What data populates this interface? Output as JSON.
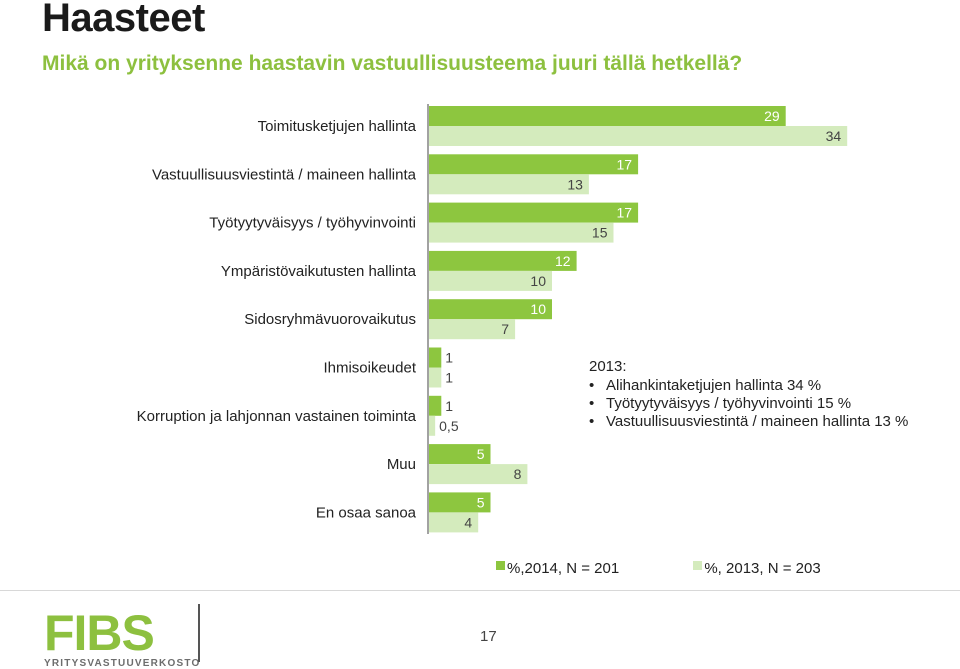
{
  "slide": {
    "title": "Haasteet",
    "subtitle": "Mikä on yrityksenne haastavin vastuullisuusteema juuri tällä hetkellä?",
    "page_number": "17"
  },
  "logo": {
    "name": "FIBS",
    "tagline": "YRITYSVASTUUVERKOSTO"
  },
  "note": {
    "heading": "2013:",
    "items": [
      "Alihankintaketjujen hallinta 34 %",
      "Työtyytyväisyys / työhyvinvointi 15 %",
      "Vastuullisuusviestintä / maineen hallinta 13 %"
    ]
  },
  "colors": {
    "series_2014": "#8dc63f",
    "series_2013": "#d4ebbd",
    "accent": "#8dc03f",
    "value_label_on_bar": "#ffffff",
    "value_label_outside": "#444444"
  },
  "chart_data": {
    "type": "bar",
    "orientation": "horizontal",
    "categories": [
      "Toimitusketjujen hallinta",
      "Vastuullisuusviestintä / maineen hallinta",
      "Työtyytyväisyys / työhyvinvointi",
      "Ympäristövaikutusten hallinta",
      "Sidosryhmävuorovaikutus",
      "Ihmisoikeudet",
      "Korruption ja lahjonnan vastainen toiminta",
      "Muu",
      "En osaa sanoa"
    ],
    "series": [
      {
        "name": "%,2014, N = 201",
        "values": [
          29,
          17,
          17,
          12,
          10,
          1,
          1,
          5,
          5
        ],
        "labels": [
          "29",
          "17",
          "17",
          "12",
          "10",
          "1",
          "1",
          "5",
          "5"
        ]
      },
      {
        "name": "%, 2013, N = 203",
        "values": [
          34,
          13,
          15,
          10,
          7,
          1,
          0.5,
          8,
          4
        ],
        "labels": [
          "34",
          "13",
          "15",
          "10",
          "7",
          "1",
          "0,5",
          "8",
          "4"
        ]
      }
    ],
    "xlim": [
      0,
      37
    ],
    "legend_position": "bottom",
    "grid": false
  }
}
